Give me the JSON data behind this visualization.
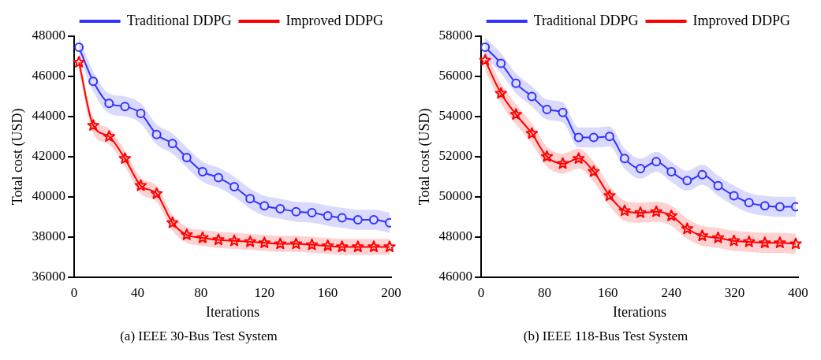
{
  "chart_data": [
    {
      "type": "line",
      "title": "(a) IEEE 30-Bus Test System",
      "xlabel": "Iterations",
      "ylabel": "Total cost (USD)",
      "xlim": [
        0,
        200
      ],
      "xticks": [
        0,
        40,
        80,
        120,
        160,
        200
      ],
      "ylim": [
        36000,
        48000
      ],
      "yticks": [
        36000,
        38000,
        40000,
        42000,
        44000,
        46000,
        48000
      ],
      "grid": false,
      "legend": "top",
      "x": [
        3,
        12,
        22,
        32,
        42,
        52,
        62,
        71,
        81,
        91,
        101,
        111,
        120,
        130,
        140,
        150,
        160,
        169,
        179,
        189,
        199
      ],
      "series": [
        {
          "name": "Traditional DDPG",
          "color": "#3333ff",
          "marker": "circle",
          "values": [
            47450,
            45750,
            44650,
            44500,
            44150,
            43100,
            42650,
            41950,
            41250,
            40950,
            40500,
            39900,
            39550,
            39400,
            39250,
            39200,
            39050,
            38950,
            38850,
            38850,
            38700
          ],
          "lower": [
            46950,
            45250,
            44150,
            44000,
            43650,
            42600,
            42150,
            41450,
            40750,
            40450,
            40000,
            39400,
            39050,
            38900,
            38750,
            38700,
            38550,
            38450,
            38350,
            38350,
            38200
          ],
          "upper": [
            47950,
            46250,
            45150,
            45000,
            44650,
            43600,
            43150,
            42450,
            41750,
            41450,
            41000,
            40400,
            40050,
            39900,
            39750,
            39700,
            39550,
            39450,
            39350,
            39350,
            39200
          ]
        },
        {
          "name": "Improved DDPG",
          "color": "#ff0000",
          "marker": "star",
          "values": [
            46700,
            43550,
            43000,
            41900,
            40550,
            40150,
            38700,
            38100,
            37950,
            37850,
            37800,
            37750,
            37700,
            37650,
            37650,
            37600,
            37550,
            37500,
            37500,
            37500,
            37500
          ],
          "lower": [
            46300,
            43150,
            42600,
            41500,
            40150,
            39750,
            38300,
            37700,
            37550,
            37450,
            37400,
            37350,
            37300,
            37250,
            37250,
            37200,
            37150,
            37100,
            37100,
            37100,
            37100
          ],
          "upper": [
            47100,
            43950,
            43400,
            42300,
            40950,
            40550,
            39100,
            38500,
            38350,
            38250,
            38200,
            38150,
            38100,
            38050,
            38050,
            38000,
            37950,
            37900,
            37900,
            37900,
            37900
          ]
        }
      ]
    },
    {
      "type": "line",
      "title": "(b) IEEE 118-Bus Test System",
      "xlabel": "Iterations",
      "ylabel": "Total cost (USD)",
      "xlim": [
        0,
        400
      ],
      "xticks": [
        0,
        80,
        160,
        240,
        320,
        400
      ],
      "ylim": [
        46000,
        58000
      ],
      "yticks": [
        46000,
        48000,
        50000,
        52000,
        54000,
        56000,
        58000
      ],
      "grid": false,
      "legend": "top",
      "x": [
        5,
        25,
        44,
        64,
        83,
        103,
        123,
        142,
        162,
        181,
        201,
        221,
        240,
        260,
        279,
        299,
        319,
        338,
        358,
        377,
        397
      ],
      "series": [
        {
          "name": "Traditional DDPG",
          "color": "#3333ff",
          "marker": "circle",
          "values": [
            57450,
            56650,
            55650,
            55000,
            54350,
            54200,
            52950,
            52950,
            53000,
            51900,
            51400,
            51750,
            51250,
            50800,
            51100,
            50550,
            50050,
            49700,
            49550,
            49500,
            49500
          ],
          "lower": [
            56950,
            56150,
            55150,
            54500,
            53850,
            53700,
            52450,
            52450,
            52500,
            51400,
            50900,
            51250,
            50750,
            50300,
            50600,
            50050,
            49550,
            49200,
            49050,
            49000,
            49000
          ],
          "upper": [
            57950,
            57150,
            56150,
            55500,
            54850,
            54700,
            53450,
            53450,
            53500,
            52400,
            51900,
            52250,
            51750,
            51300,
            51600,
            51050,
            50550,
            50200,
            50050,
            50000,
            50000
          ]
        },
        {
          "name": "Improved DDPG",
          "color": "#ff0000",
          "marker": "star",
          "values": [
            56800,
            55150,
            54100,
            53150,
            52000,
            51650,
            51900,
            51250,
            50050,
            49300,
            49200,
            49250,
            49050,
            48400,
            48050,
            47950,
            47800,
            47750,
            47700,
            47700,
            47650
          ],
          "lower": [
            56300,
            54650,
            53600,
            52650,
            51500,
            51150,
            51400,
            50750,
            49550,
            48800,
            48700,
            48750,
            48550,
            47900,
            47550,
            47450,
            47300,
            47250,
            47200,
            47200,
            47150
          ],
          "upper": [
            57300,
            55650,
            54600,
            53650,
            52500,
            52150,
            52400,
            51750,
            50550,
            49800,
            49700,
            49750,
            49550,
            48900,
            48550,
            48450,
            48300,
            48250,
            48200,
            48200,
            48150
          ]
        }
      ]
    }
  ]
}
